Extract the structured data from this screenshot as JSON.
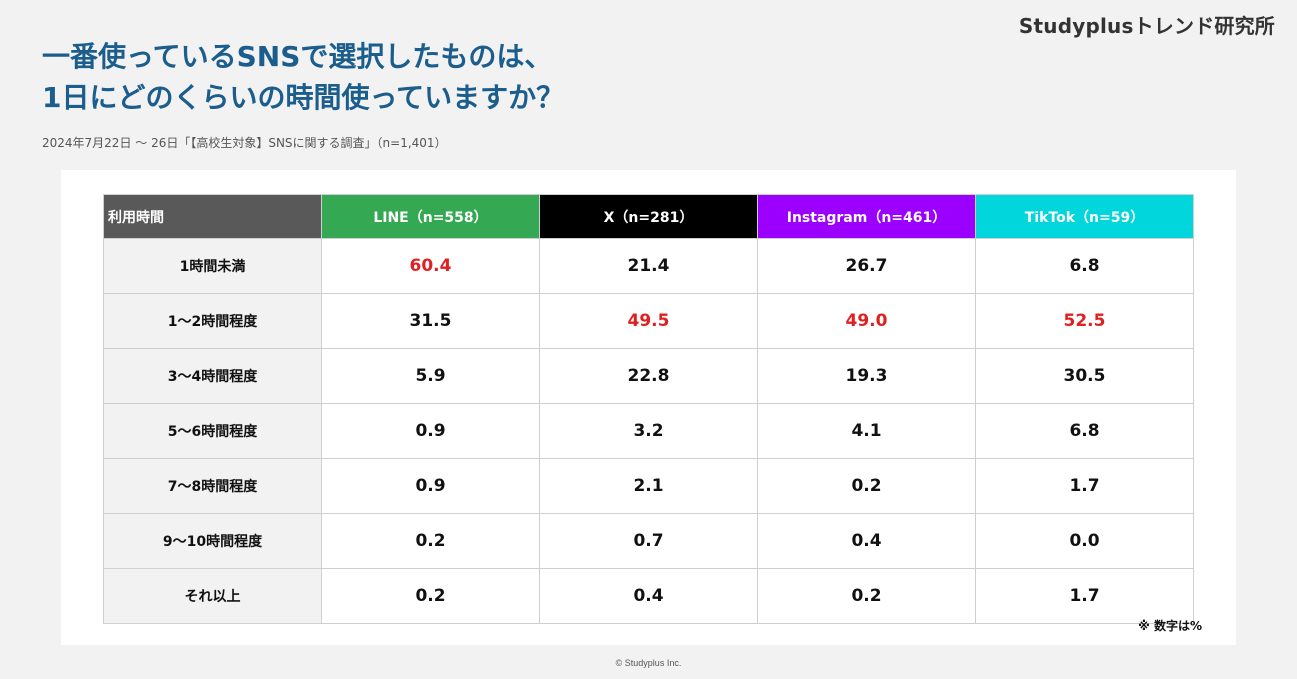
{
  "brand": "Studyplusトレンド研究所",
  "title_line1": "一番使っているSNSで選択したものは、",
  "title_line2": "1日にどのくらいの時間使っていますか？",
  "subtitle": "2024年7月22日 〜 26日「【高校生対象】SNSに関する調査」（n=1,401）",
  "table": {
    "header_label": "利用時間",
    "columns": [
      {
        "label": "LINE（n=558）",
        "color": "#34a853"
      },
      {
        "label": "X（n=281）",
        "color": "#000000"
      },
      {
        "label": "Instagram（n=461）",
        "color": "#9b00ff"
      },
      {
        "label": "TikTok（n=59）",
        "color": "#00d6dc"
      }
    ],
    "header_label_color": "#595959",
    "highlight_color": "#e02020",
    "rows": [
      {
        "label": "1時間未満",
        "values": [
          "60.4",
          "21.4",
          "26.7",
          "6.8"
        ],
        "highlight": [
          true,
          false,
          false,
          false
        ]
      },
      {
        "label": "1〜2時間程度",
        "values": [
          "31.5",
          "49.5",
          "49.0",
          "52.5"
        ],
        "highlight": [
          false,
          true,
          true,
          true
        ]
      },
      {
        "label": "3〜4時間程度",
        "values": [
          "5.9",
          "22.8",
          "19.3",
          "30.5"
        ],
        "highlight": [
          false,
          false,
          false,
          false
        ]
      },
      {
        "label": "5〜6時間程度",
        "values": [
          "0.9",
          "3.2",
          "4.1",
          "6.8"
        ],
        "highlight": [
          false,
          false,
          false,
          false
        ]
      },
      {
        "label": "7〜8時間程度",
        "values": [
          "0.9",
          "2.1",
          "0.2",
          "1.7"
        ],
        "highlight": [
          false,
          false,
          false,
          false
        ]
      },
      {
        "label": "9〜10時間程度",
        "values": [
          "0.2",
          "0.7",
          "0.4",
          "0.0"
        ],
        "highlight": [
          false,
          false,
          false,
          false
        ]
      },
      {
        "label": "それ以上",
        "values": [
          "0.2",
          "0.4",
          "0.2",
          "1.7"
        ],
        "highlight": [
          false,
          false,
          false,
          false
        ]
      }
    ]
  },
  "note": "※ 数字は%",
  "footer": "© Studyplus Inc."
}
